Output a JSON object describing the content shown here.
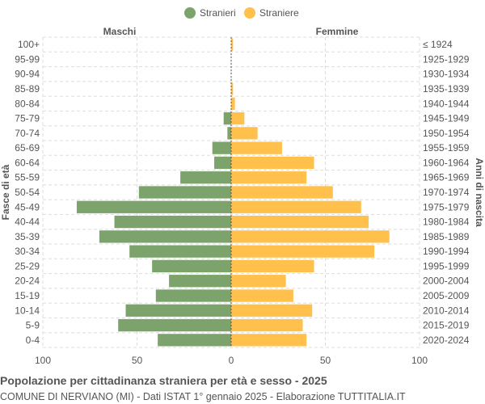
{
  "chart_data": {
    "type": "bar",
    "orientation": "horizontal-pyramid",
    "title": "Popolazione per cittadinanza straniera per età e sesso - 2025",
    "subtitle": "COMUNE DI NERVIANO (MI) - Dati ISTAT 1° gennaio 2025 - Elaborazione TUTTITALIA.IT",
    "ylabel_left": "Fasce di età",
    "ylabel_right": "Anni di nascita",
    "left_header": "Maschi",
    "right_header": "Femmine",
    "xlim": [
      -100,
      100
    ],
    "xticks": [
      "100",
      "50",
      "0",
      "50",
      "100"
    ],
    "grid": true,
    "legend_position": "top",
    "categories": [
      "100+",
      "95-99",
      "90-94",
      "85-89",
      "80-84",
      "75-79",
      "70-74",
      "65-69",
      "60-64",
      "55-59",
      "50-54",
      "45-49",
      "40-44",
      "35-39",
      "30-34",
      "25-29",
      "20-24",
      "15-19",
      "10-14",
      "5-9",
      "0-4"
    ],
    "birth_years": [
      "≤ 1924",
      "1925-1929",
      "1930-1934",
      "1935-1939",
      "1940-1944",
      "1945-1949",
      "1950-1954",
      "1955-1959",
      "1960-1964",
      "1965-1969",
      "1970-1974",
      "1975-1979",
      "1980-1984",
      "1985-1989",
      "1990-1994",
      "1995-1999",
      "2000-2004",
      "2005-2009",
      "2010-2014",
      "2015-2019",
      "2020-2024"
    ],
    "series": [
      {
        "name": "Stranieri",
        "color": "#7da36d",
        "values": [
          0,
          0,
          0,
          0,
          0,
          4,
          2,
          10,
          9,
          27,
          49,
          82,
          62,
          70,
          54,
          42,
          33,
          40,
          56,
          60,
          39
        ]
      },
      {
        "name": "Straniere",
        "color": "#ffc04c",
        "values": [
          1,
          0,
          0,
          1,
          2,
          7,
          14,
          27,
          44,
          40,
          54,
          69,
          73,
          84,
          76,
          44,
          29,
          33,
          43,
          38,
          40
        ]
      }
    ]
  }
}
